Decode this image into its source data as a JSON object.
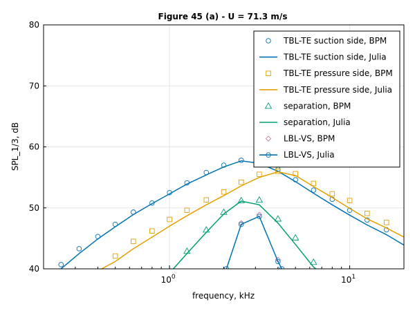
{
  "chart_data": {
    "type": "line",
    "title": "Figure 45 (a) - U = 71.3 m/s",
    "xlabel": "frequency, kHz",
    "ylabel": "SPL_1/3, dB",
    "xscale": "log",
    "xlim": [
      0.2,
      20
    ],
    "ylim": [
      40,
      80
    ],
    "grid": true,
    "legend_position": "top-right",
    "x_ticks": [
      {
        "value": 1,
        "base": "10",
        "exp": "0"
      },
      {
        "value": 10,
        "base": "10",
        "exp": "1"
      }
    ],
    "y_ticks": [
      40,
      50,
      60,
      70,
      80
    ],
    "series": [
      {
        "name": "TBL-TE suction side, BPM",
        "kind": "markers",
        "marker": "circle",
        "color": "#0072b2",
        "points": [
          [
            0.25,
            40.7
          ],
          [
            0.315,
            43.3
          ],
          [
            0.4,
            45.3
          ],
          [
            0.5,
            47.3
          ],
          [
            0.63,
            49.3
          ],
          [
            0.8,
            50.8
          ],
          [
            1.0,
            52.5
          ],
          [
            1.25,
            54.1
          ],
          [
            1.6,
            55.8
          ],
          [
            2.0,
            57.0
          ],
          [
            2.5,
            57.8
          ],
          [
            3.15,
            57.4
          ],
          [
            4.0,
            56.3
          ],
          [
            5.0,
            54.6
          ],
          [
            6.3,
            52.9
          ],
          [
            8.0,
            51.4
          ],
          [
            10.0,
            49.6
          ],
          [
            12.5,
            48.0
          ],
          [
            16.0,
            46.4
          ]
        ]
      },
      {
        "name": "TBL-TE suction side, Julia",
        "kind": "line",
        "color": "#0072b2",
        "points": [
          [
            0.25,
            40.0
          ],
          [
            0.315,
            42.5
          ],
          [
            0.4,
            44.9
          ],
          [
            0.5,
            46.9
          ],
          [
            0.63,
            48.9
          ],
          [
            0.8,
            50.7
          ],
          [
            1.0,
            52.3
          ],
          [
            1.25,
            53.9
          ],
          [
            1.6,
            55.4
          ],
          [
            2.0,
            56.7
          ],
          [
            2.5,
            57.7
          ],
          [
            3.15,
            57.3
          ],
          [
            4.0,
            56.0
          ],
          [
            5.0,
            54.3
          ],
          [
            6.3,
            52.4
          ],
          [
            8.0,
            50.5
          ],
          [
            10.0,
            48.8
          ],
          [
            12.5,
            47.2
          ],
          [
            16.0,
            45.6
          ],
          [
            20.0,
            43.9
          ]
        ]
      },
      {
        "name": "TBL-TE pressure side, BPM",
        "kind": "markers",
        "marker": "square",
        "color": "#e69f00",
        "points": [
          [
            0.5,
            42.1
          ],
          [
            0.63,
            44.5
          ],
          [
            0.8,
            46.2
          ],
          [
            1.0,
            48.1
          ],
          [
            1.25,
            49.6
          ],
          [
            1.6,
            51.3
          ],
          [
            2.0,
            52.6
          ],
          [
            2.5,
            54.2
          ],
          [
            3.15,
            55.5
          ],
          [
            4.0,
            56.0
          ],
          [
            5.0,
            55.6
          ],
          [
            6.3,
            54.0
          ],
          [
            8.0,
            52.3
          ],
          [
            10.0,
            51.2
          ],
          [
            12.5,
            49.1
          ],
          [
            16.0,
            47.6
          ]
        ]
      },
      {
        "name": "TBL-TE pressure side, Julia",
        "kind": "line",
        "color": "#e69f00",
        "points": [
          [
            0.42,
            40.0
          ],
          [
            0.5,
            41.2
          ],
          [
            0.63,
            43.3
          ],
          [
            0.8,
            45.2
          ],
          [
            1.0,
            47.0
          ],
          [
            1.25,
            48.7
          ],
          [
            1.6,
            50.5
          ],
          [
            2.0,
            52.0
          ],
          [
            2.5,
            53.6
          ],
          [
            3.15,
            55.0
          ],
          [
            4.0,
            55.9
          ],
          [
            5.0,
            55.3
          ],
          [
            6.3,
            53.5
          ],
          [
            8.0,
            51.7
          ],
          [
            10.0,
            49.9
          ],
          [
            12.5,
            48.2
          ],
          [
            16.0,
            46.7
          ],
          [
            20.0,
            45.2
          ]
        ]
      },
      {
        "name": "separation, BPM",
        "kind": "markers",
        "marker": "triangle",
        "color": "#009e73",
        "points": [
          [
            1.25,
            42.9
          ],
          [
            1.6,
            46.4
          ],
          [
            2.0,
            49.3
          ],
          [
            2.5,
            51.2
          ],
          [
            3.15,
            51.3
          ],
          [
            4.0,
            48.2
          ],
          [
            5.0,
            45.1
          ],
          [
            6.3,
            41.1
          ]
        ]
      },
      {
        "name": "separation, Julia",
        "kind": "line",
        "color": "#009e73",
        "points": [
          [
            1.05,
            40.0
          ],
          [
            1.25,
            42.5
          ],
          [
            1.6,
            46.0
          ],
          [
            2.0,
            49.0
          ],
          [
            2.5,
            51.1
          ],
          [
            3.15,
            50.5
          ],
          [
            4.0,
            47.5
          ],
          [
            5.0,
            44.0
          ],
          [
            6.3,
            40.3
          ],
          [
            6.5,
            40.0
          ]
        ]
      },
      {
        "name": "LBL-VS, BPM",
        "kind": "markers",
        "marker": "diamond",
        "color": "#cc79a7",
        "points": [
          [
            2.5,
            47.5
          ],
          [
            3.15,
            48.9
          ],
          [
            4.0,
            41.5
          ]
        ]
      },
      {
        "name": "LBL-VS, Julia",
        "kind": "line",
        "marker": "circle",
        "color": "#0072b2",
        "points": [
          [
            2.07,
            40.0
          ],
          [
            2.5,
            47.3
          ],
          [
            3.15,
            48.6
          ],
          [
            4.0,
            41.2
          ],
          [
            4.2,
            40.0
          ]
        ]
      }
    ]
  }
}
